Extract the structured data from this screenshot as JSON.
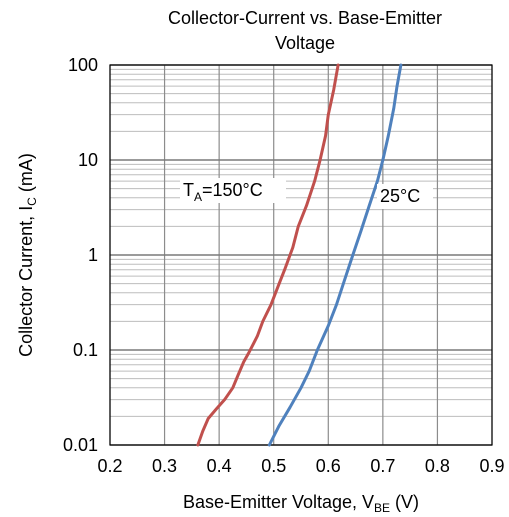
{
  "chart_data": {
    "type": "line",
    "title_lines": [
      "Collector-Current vs. Base-Emitter",
      "Voltage"
    ],
    "xlabel": {
      "main": "Base-Emitter Voltage, V",
      "sub": "BE",
      "unit": " (V)"
    },
    "ylabel": {
      "main": "Collector Current, I",
      "sub": "C",
      "unit": " (mA)"
    },
    "x_scale": "linear",
    "y_scale": "log",
    "xlim": [
      0.2,
      0.9
    ],
    "ylim": [
      0.01,
      100
    ],
    "x_ticks": [
      "0.2",
      "0.3",
      "0.4",
      "0.5",
      "0.6",
      "0.7",
      "0.8",
      "0.9"
    ],
    "y_ticks": [
      "0.01",
      "0.1",
      "1",
      "10",
      "100"
    ],
    "grid": true,
    "series": [
      {
        "name": "T_A=150°C",
        "label_main": "T",
        "label_sub": "A",
        "label_rest": "=150°C",
        "color": "#c0504d",
        "points": [
          [
            0.361,
            0.01
          ],
          [
            0.37,
            0.014
          ],
          [
            0.38,
            0.019
          ],
          [
            0.395,
            0.024
          ],
          [
            0.41,
            0.03
          ],
          [
            0.425,
            0.04
          ],
          [
            0.435,
            0.055
          ],
          [
            0.445,
            0.075
          ],
          [
            0.455,
            0.095
          ],
          [
            0.47,
            0.14
          ],
          [
            0.48,
            0.2
          ],
          [
            0.495,
            0.3
          ],
          [
            0.51,
            0.5
          ],
          [
            0.52,
            0.7
          ],
          [
            0.535,
            1.2
          ],
          [
            0.545,
            2.0
          ],
          [
            0.56,
            3.3
          ],
          [
            0.575,
            6.0
          ],
          [
            0.585,
            10.0
          ],
          [
            0.595,
            18.0
          ],
          [
            0.6,
            30.0
          ],
          [
            0.61,
            55.0
          ],
          [
            0.618,
            100.0
          ]
        ]
      },
      {
        "name": "25°C",
        "label_main": "25°C",
        "label_sub": "",
        "label_rest": "",
        "color": "#4f81bd",
        "points": [
          [
            0.492,
            0.01
          ],
          [
            0.51,
            0.016
          ],
          [
            0.53,
            0.025
          ],
          [
            0.55,
            0.04
          ],
          [
            0.565,
            0.06
          ],
          [
            0.58,
            0.1
          ],
          [
            0.6,
            0.18
          ],
          [
            0.615,
            0.3
          ],
          [
            0.63,
            0.55
          ],
          [
            0.645,
            1.0
          ],
          [
            0.66,
            1.8
          ],
          [
            0.675,
            3.3
          ],
          [
            0.69,
            6.0
          ],
          [
            0.7,
            10.0
          ],
          [
            0.71,
            18.0
          ],
          [
            0.72,
            35.0
          ],
          [
            0.726,
            60.0
          ],
          [
            0.733,
            100.0
          ]
        ]
      }
    ]
  }
}
